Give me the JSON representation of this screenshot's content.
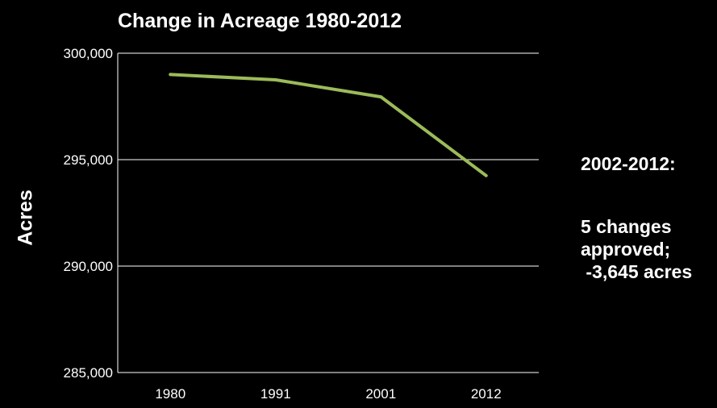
{
  "chart_data": {
    "type": "line",
    "title": "Change in Acreage 1980-2012",
    "xlabel": "",
    "ylabel": "Acres",
    "categories": [
      "1980",
      "1991",
      "2001",
      "2012"
    ],
    "series": [
      {
        "values": [
          299000,
          298750,
          297950,
          294250
        ],
        "color": "#9BBB59"
      }
    ],
    "ylim": [
      285000,
      300000
    ],
    "yticks": [
      300000,
      295000,
      290000,
      285000
    ],
    "ytick_labels": [
      "300,000",
      "295,000",
      "290,000",
      "285,000"
    ],
    "grid": true,
    "legend": "none",
    "annotations": [
      "2002-2012:",
      "5 changes",
      "approved;",
      " -3,645 acres"
    ]
  },
  "colors": {
    "background": "#000000",
    "text": "#FFFFFF",
    "gridline": "#FFFFFF",
    "series_line": "#9BBB59"
  }
}
